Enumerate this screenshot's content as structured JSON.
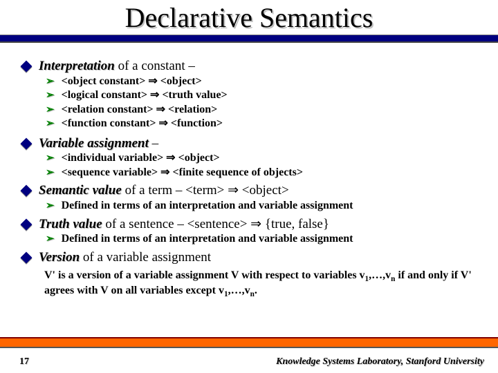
{
  "title": "Declarative Semantics",
  "arrow_glyph": "➢",
  "imply": "⇒",
  "sections": [
    {
      "head_bold": "Interpretation",
      "head_rest": " of a constant –",
      "subs": [
        "<object constant> ⇒ <object>",
        "<logical constant> ⇒ <truth value>",
        "<relation constant> ⇒ <relation>",
        "<function constant> ⇒ <function>"
      ]
    },
    {
      "head_bold": "Variable assignment",
      "head_rest": " –",
      "subs": [
        "<individual variable> ⇒ <object>",
        "<sequence variable> ⇒ <finite sequence of objects>"
      ]
    },
    {
      "head_bold": "Semantic value",
      "head_rest": " of a term  –  <term> ⇒ <object>",
      "subs": [
        "Defined in terms of an interpretation and variable assignment"
      ]
    },
    {
      "head_bold": "Truth value",
      "head_rest": " of a sentence  –  <sentence> ⇒ {true, false}",
      "subs": [
        "Defined in terms of an interpretation and variable assignment"
      ]
    },
    {
      "head_bold": "Version",
      "head_rest": " of a variable assignment",
      "subs": []
    }
  ],
  "note_html": "V' is a version of a variable assignment V with respect to variables v<span class=\"subsc\">1</span>,…,v<span class=\"subsc\">n</span> if and only if V' agrees with V on all variables except v<span class=\"subsc\">1</span>,…,v<span class=\"subsc\">n</span>.",
  "page_number": "17",
  "lab": "Knowledge Systems Laboratory, Stanford University",
  "colors": {
    "title_rule": "#000080",
    "diamond": "#000080",
    "arrow": "#008000",
    "footer_bar": "#ff6600",
    "footer_bar_top": "#800000"
  }
}
